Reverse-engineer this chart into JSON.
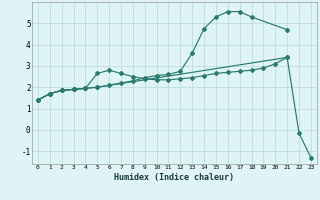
{
  "bg_color": "#dff4f4",
  "grid_color": "#b8dada",
  "line_color": "#2a7a70",
  "xlabel": "Humidex (Indice chaleur)",
  "xlim": [
    -0.5,
    23.5
  ],
  "ylim": [
    -1.6,
    6.0
  ],
  "xticks": [
    0,
    1,
    2,
    3,
    4,
    5,
    6,
    7,
    8,
    9,
    10,
    11,
    12,
    13,
    14,
    15,
    16,
    17,
    18,
    19,
    20,
    21,
    22,
    23
  ],
  "yticks": [
    -1,
    0,
    1,
    2,
    3,
    4,
    5
  ],
  "line1_x": [
    0,
    1,
    2,
    3,
    4,
    5,
    6,
    7,
    8,
    9,
    10,
    11,
    12,
    13,
    14,
    15,
    16,
    17,
    18,
    19,
    20,
    21
  ],
  "line1_y": [
    1.4,
    1.7,
    1.85,
    1.9,
    1.95,
    2.65,
    2.8,
    2.65,
    2.5,
    2.4,
    2.35,
    2.35,
    2.4,
    2.45,
    2.55,
    2.65,
    2.7,
    2.75,
    2.8,
    2.9,
    3.1,
    3.4
  ],
  "line2_x": [
    0,
    1,
    2,
    3,
    4,
    5,
    6,
    7,
    8,
    9,
    10,
    11,
    12,
    13,
    14,
    15,
    16,
    17,
    18,
    21
  ],
  "line2_y": [
    1.4,
    1.7,
    1.85,
    1.9,
    1.95,
    2.0,
    2.1,
    2.2,
    2.3,
    2.45,
    2.55,
    2.6,
    2.75,
    3.6,
    4.75,
    5.3,
    5.55,
    5.55,
    5.3,
    4.7
  ],
  "line3_x": [
    0,
    1,
    2,
    3,
    4,
    5,
    21,
    22,
    23
  ],
  "line3_y": [
    1.4,
    1.7,
    1.85,
    1.9,
    1.95,
    2.0,
    3.4,
    -0.15,
    -1.3
  ]
}
